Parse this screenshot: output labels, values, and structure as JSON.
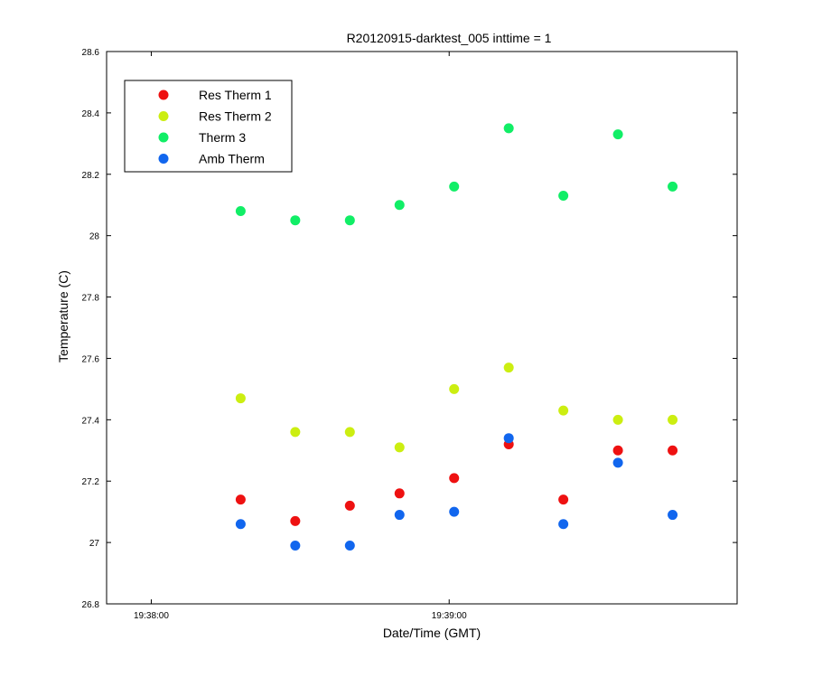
{
  "chart_data": {
    "type": "scatter",
    "title": "R20120915-darktest_005 inttime = 1",
    "xlabel": "Date/Time (GMT)",
    "ylabel": "Temperature (C)",
    "xlim": [
      "19:37:51",
      "19:39:58"
    ],
    "ylim": [
      26.8,
      28.6
    ],
    "x_ticks": [
      {
        "label": "19:38:00",
        "value": "19:38:00"
      },
      {
        "label": "19:39:00",
        "value": "19:39:00"
      }
    ],
    "y_ticks": [
      {
        "label": "26.8",
        "value": 26.8
      },
      {
        "label": "27",
        "value": 27.0
      },
      {
        "label": "27.2",
        "value": 27.2
      },
      {
        "label": "27.4",
        "value": 27.4
      },
      {
        "label": "27.6",
        "value": 27.6
      },
      {
        "label": "27.8",
        "value": 27.8
      },
      {
        "label": "28",
        "value": 28.0
      },
      {
        "label": "28.2",
        "value": 28.2
      },
      {
        "label": "28.4",
        "value": 28.4
      },
      {
        "label": "28.6",
        "value": 28.6
      }
    ],
    "x": [
      "19:38:18",
      "19:38:29",
      "19:38:40",
      "19:38:50",
      "19:39:01",
      "19:39:12",
      "19:39:23",
      "19:39:34",
      "19:39:45"
    ],
    "series": [
      {
        "name": "Res Therm 1",
        "color": "#ee1111",
        "values": [
          27.14,
          27.07,
          27.12,
          27.16,
          27.21,
          27.32,
          27.14,
          27.3,
          27.3
        ]
      },
      {
        "name": "Res Therm 2",
        "color": "#ccee11",
        "values": [
          27.47,
          27.36,
          27.36,
          27.31,
          27.5,
          27.57,
          27.43,
          27.4,
          27.4
        ]
      },
      {
        "name": "Therm 3",
        "color": "#11ee66",
        "values": [
          28.08,
          28.05,
          28.05,
          28.1,
          28.16,
          28.35,
          28.13,
          28.33,
          28.16
        ]
      },
      {
        "name": "Amb Therm",
        "color": "#1166ee",
        "values": [
          27.06,
          26.99,
          26.99,
          27.09,
          27.1,
          27.34,
          27.06,
          27.26,
          27.09
        ]
      }
    ],
    "legend_position": "top-left",
    "grid": false
  }
}
